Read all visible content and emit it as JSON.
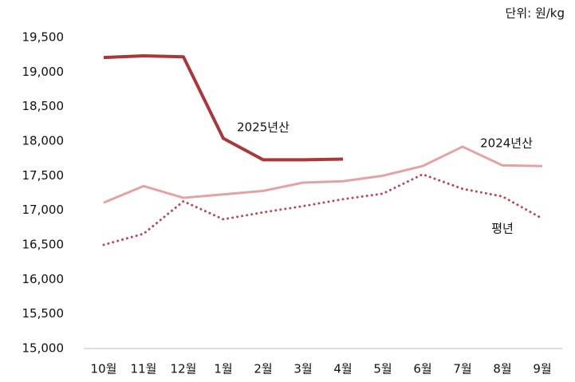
{
  "chart_data": {
    "type": "line",
    "unit_label": "단위: 원/kg",
    "categories": [
      "10월",
      "11월",
      "12월",
      "1월",
      "2월",
      "3월",
      "4월",
      "5월",
      "6월",
      "7월",
      "8월",
      "9월"
    ],
    "series": [
      {
        "name": "2025년산",
        "color": "#a8383c",
        "style": "solid",
        "width": 4,
        "values": [
          19210,
          19235,
          19220,
          18040,
          17730,
          17730,
          17740,
          null,
          null,
          null,
          null,
          null
        ]
      },
      {
        "name": "2024년산",
        "color": "#e3a3a5",
        "style": "solid",
        "width": 3,
        "values": [
          17110,
          17350,
          17180,
          17230,
          17280,
          17400,
          17420,
          17500,
          17640,
          17920,
          17650,
          17640
        ]
      },
      {
        "name": "평년",
        "color": "#b84a55",
        "style": "dotted",
        "width": 3,
        "values": [
          16500,
          16660,
          17130,
          16870,
          16970,
          17060,
          17160,
          17240,
          17520,
          17310,
          17200,
          16880
        ]
      }
    ],
    "ylim": [
      15000,
      19500
    ],
    "yticks": [
      {
        "value": 15000,
        "label": "15,000"
      },
      {
        "value": 15500,
        "label": "15,500"
      },
      {
        "value": 16000,
        "label": "16,000"
      },
      {
        "value": 16500,
        "label": "16,500"
      },
      {
        "value": 17000,
        "label": "17,000"
      },
      {
        "value": 17500,
        "label": "17,500"
      },
      {
        "value": 18000,
        "label": "18,000"
      },
      {
        "value": 18500,
        "label": "18,500"
      },
      {
        "value": 19000,
        "label": "19,000"
      },
      {
        "value": 19500,
        "label": "19,500"
      }
    ],
    "grid": false
  }
}
